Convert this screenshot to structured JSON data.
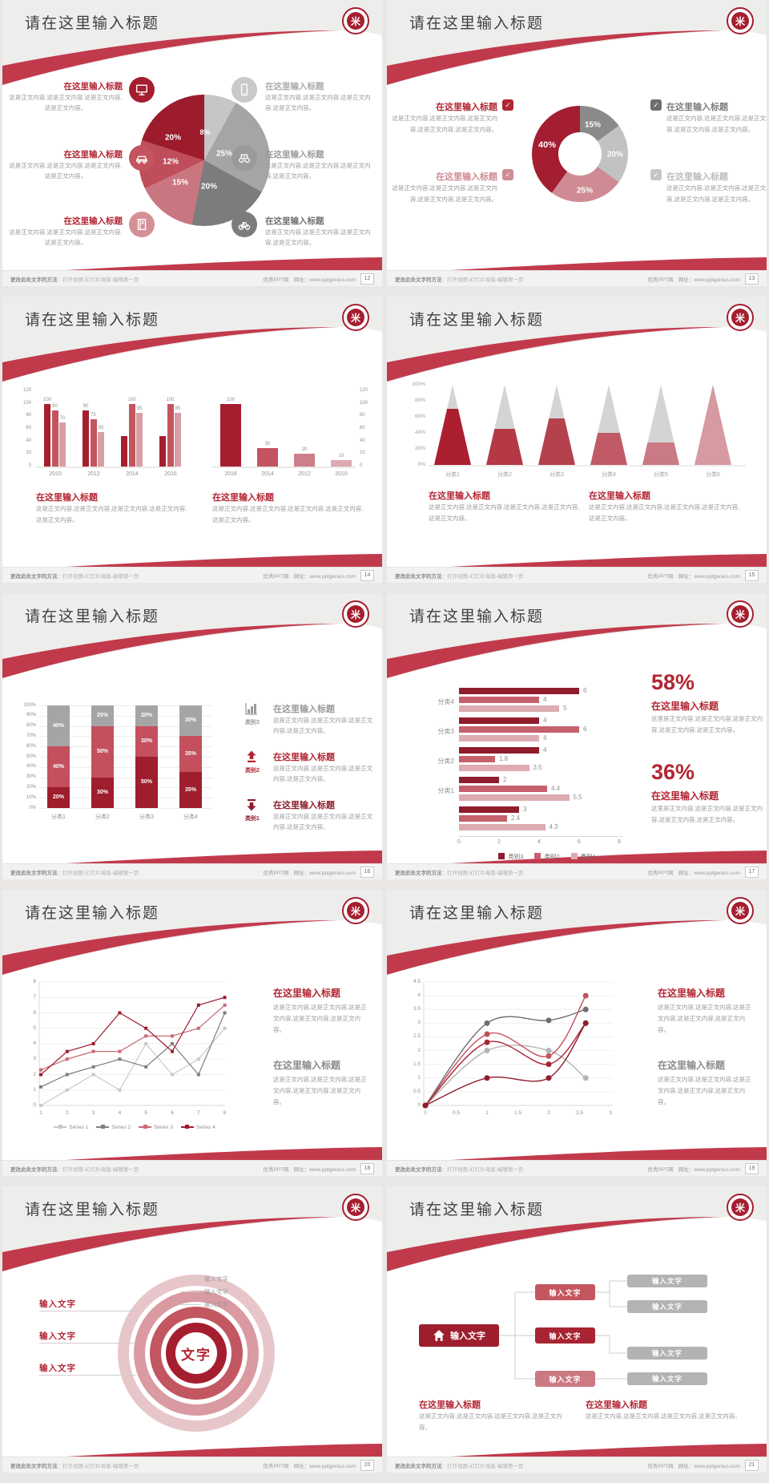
{
  "page": {
    "background": "#e9e7e5"
  },
  "colors": {
    "swoosh": "#c13a4c",
    "band": "#ededec",
    "crimson": "#a51e30",
    "dark_crimson": "#8f1d2c",
    "title_red": "#b22532",
    "med_red": "#c4545f",
    "pink": "#cb7a84",
    "light_pink": "#d99aa0",
    "pale_rose": "#e7c6ca",
    "gray_dark": "#7c7c7c",
    "gray": "#9a9a9a",
    "gray_light": "#c6c6c6",
    "title_text": "#404040",
    "body_text": "#9b9b9b"
  },
  "common": {
    "slide_title": "请在这里输入标题",
    "section_title": "在这里输入标题",
    "body4": "这是正文内容,这是正文内容,这是正文内容,这是正文内容。",
    "body5": "这是正文内容,这是正文内容,这是正文内容,这是正文内容,这是正文内容。",
    "body_alt": "这里是正文内容,这是正文内容,这是正文内容,这是正文内容,这是正文内容。",
    "input_text": "输入文字",
    "footer_left_strong": "更改此处文字的方法",
    "footer_left_rest": "：打开视图-幻灯片母版-编辑第一页",
    "footer_site": "优秀PPT网",
    "footer_url": "网址：www.pptgenius.com",
    "logo_glyph": "米"
  },
  "slides": [
    {
      "page": "12",
      "type": "pie",
      "chart_data": {
        "type": "pie",
        "values": [
          8,
          25,
          20,
          15,
          12,
          20
        ],
        "labels": [
          "8%",
          "25%",
          "20%",
          "15%",
          "12%",
          "20%"
        ],
        "colors": [
          "#c6c6c6",
          "#a5a5a5",
          "#7c7c7c",
          "#ca7680",
          "#bf4d5b",
          "#9c1b2c"
        ]
      },
      "items": [
        {
          "side": "left",
          "icon": "monitor-icon",
          "icon_color": "#a51e30",
          "title_color": "#b22532"
        },
        {
          "side": "left",
          "icon": "car-icon",
          "icon_color": "#c4545f",
          "title_color": "#b22532"
        },
        {
          "side": "left",
          "icon": "book-icon",
          "icon_color": "#d58f97",
          "title_color": "#b22532"
        },
        {
          "side": "right",
          "icon": "phone-icon",
          "icon_color": "#c9c9c9",
          "title_color": "#ababab"
        },
        {
          "side": "right",
          "icon": "binoculars-icon",
          "icon_color": "#9a9a9a",
          "title_color": "#9a9a9a"
        },
        {
          "side": "right",
          "icon": "bicycle-icon",
          "icon_color": "#7c7c7c",
          "title_color": "#6f6f6f"
        }
      ]
    },
    {
      "page": "13",
      "type": "donut",
      "chart_data": {
        "type": "pie",
        "values": [
          15,
          20,
          25,
          40
        ],
        "labels": [
          "15%",
          "20%",
          "25%",
          "40%"
        ],
        "colors": [
          "#8a8a8a",
          "#c2c2c2",
          "#cf8b93",
          "#a31e30"
        ]
      },
      "items": [
        {
          "pos": "lt",
          "title_color": "#b22532",
          "check_color": "#b22532"
        },
        {
          "pos": "lb",
          "title_color": "#cf8b93",
          "check_color": "#cf8b93"
        },
        {
          "pos": "rt",
          "title_color": "#7d7d7d",
          "check_color": "#6e6e6e"
        },
        {
          "pos": "rb",
          "title_color": "#bcbcbc",
          "check_color": "#c6c6c6"
        }
      ]
    },
    {
      "page": "14",
      "type": "bars2",
      "chart_data": [
        {
          "type": "bar",
          "categories": [
            "2010",
            "2012",
            "2014",
            "2016"
          ],
          "series_values": [
            [
              100,
              90,
              70
            ],
            [
              90,
              75,
              55
            ],
            [
              48,
              100,
              85
            ],
            [
              48,
              100,
              85
            ]
          ],
          "value_labels": [
            [
              "100",
              "90",
              "70"
            ],
            [
              "90",
              "75",
              "55"
            ],
            [
              "",
              "100",
              "85"
            ],
            [
              "",
              "100",
              "85"
            ]
          ],
          "colors": [
            "#a51e30",
            "#c4545f",
            "#d79fa5"
          ],
          "yticks": [
            "0",
            "20",
            "40",
            "60",
            "80",
            "100",
            "120"
          ],
          "ymax": 120
        },
        {
          "type": "bar",
          "categories": [
            "2016",
            "2014",
            "2012",
            "2010"
          ],
          "values": [
            100,
            30,
            20,
            10
          ],
          "value_labels": [
            "100",
            "30",
            "20",
            "10"
          ],
          "colors": [
            "#a51e30",
            "#c4545f",
            "#cb8089",
            "#dcaab0"
          ],
          "yticks": [
            "0",
            "20",
            "40",
            "60",
            "80",
            "100",
            "120"
          ],
          "ymax": 120,
          "y_axis_side": "right"
        }
      ]
    },
    {
      "page": "15",
      "type": "cones",
      "chart_data": {
        "type": "bar",
        "categories": [
          "分类1",
          "分类2",
          "分类3",
          "分类4",
          "分类5",
          "分类6"
        ],
        "values_pct": [
          70,
          45,
          58,
          40,
          28,
          100
        ],
        "colors": [
          "#ab1f30",
          "#b43845",
          "#b4414d",
          "#c05a66",
          "#c97a85",
          "#d69aa2"
        ],
        "cone_gray": "#d4d4d4",
        "yticks": [
          "0%",
          "20%",
          "40%",
          "60%",
          "80%",
          "100%"
        ]
      }
    },
    {
      "page": "16",
      "type": "stacked",
      "chart_data": {
        "type": "bar",
        "categories": [
          "分类1",
          "分类2",
          "分类3",
          "分类4"
        ],
        "series": [
          {
            "name": "类别1",
            "color": "#9e1e2d",
            "values": [
              20,
              30,
              50,
              35
            ]
          },
          {
            "name": "类别2",
            "color": "#c4505e",
            "values": [
              40,
              50,
              30,
              35
            ]
          },
          {
            "name": "类别3",
            "color": "#a5a5a5",
            "values": [
              40,
              20,
              20,
              30
            ]
          }
        ],
        "seg_labels": [
          [
            "20%",
            "40%",
            "40%"
          ],
          [
            "30%",
            "50%",
            "20%"
          ],
          [
            "50%",
            "30%",
            "20%"
          ],
          [
            "35%",
            "35%",
            "30%"
          ]
        ],
        "yticks": [
          "0%",
          "10%",
          "20%",
          "30%",
          "40%",
          "50%",
          "60%",
          "70%",
          "80%",
          "90%",
          "100%"
        ]
      },
      "panel": [
        {
          "cat": "类别3",
          "icon": "bar-chart-icon",
          "color": "#9a9a9a"
        },
        {
          "cat": "类别2",
          "icon": "arrow-up-icon",
          "color": "#b22532"
        },
        {
          "cat": "类别1",
          "icon": "arrow-down-icon",
          "color": "#8f1d2c"
        }
      ]
    },
    {
      "page": "17",
      "type": "hbars",
      "chart_data": {
        "type": "bar",
        "groups": [
          {
            "label": "分类4",
            "values": [
              6,
              4,
              5
            ],
            "value_labels": [
              "6",
              "4",
              "5"
            ]
          },
          {
            "label": "分类3",
            "values": [
              4,
              6,
              4
            ],
            "value_labels": [
              "4",
              "6",
              "4"
            ]
          },
          {
            "label": "分类2",
            "values": [
              4,
              1.8,
              3.5
            ],
            "value_labels": [
              "4",
              "1.8",
              "3.5"
            ]
          },
          {
            "label": "分类1",
            "values": [
              2,
              4.4,
              5.5
            ],
            "value_labels": [
              "2",
              "4.4",
              "5.5"
            ]
          },
          {
            "label": "",
            "values": [
              3,
              2.4,
              4.3
            ],
            "value_labels": [
              "3",
              "2.4",
              "4.3"
            ]
          }
        ],
        "colors": [
          "#8f1d2c",
          "#c4616c",
          "#ddabb1"
        ],
        "xticks": [
          "0",
          "2",
          "4",
          "6",
          "8"
        ],
        "xmax": 8,
        "legend": [
          "类别3",
          "类别2",
          "类别1"
        ],
        "legend_colors": [
          "#8f1d2c",
          "#c4616c",
          "#ddabb1"
        ]
      },
      "stats": [
        {
          "pct": "58%"
        },
        {
          "pct": "36%"
        }
      ]
    },
    {
      "page": "18",
      "type": "lines",
      "chart_data": {
        "type": "line",
        "x": [
          1,
          2,
          3,
          4,
          5,
          6,
          7,
          8
        ],
        "yticks": [
          "0",
          "1",
          "2",
          "3",
          "4",
          "5",
          "6",
          "7",
          "8"
        ],
        "ymax": 8,
        "series": [
          {
            "name": "Series 1",
            "color": "#c9c9c9",
            "values": [
              0,
              1,
              2,
              1,
              4,
              2,
              3,
              5
            ]
          },
          {
            "name": "Series 2",
            "color": "#7f7f7f",
            "values": [
              1.2,
              2,
              2.5,
              3,
              2.5,
              4,
              2,
              6
            ]
          },
          {
            "name": "Series 3",
            "color": "#c86974",
            "values": [
              2.3,
              3,
              3.5,
              3.5,
              4.5,
              4.5,
              5,
              6.5
            ]
          },
          {
            "name": "Series 4",
            "color": "#9e1c2d",
            "values": [
              2,
              3.5,
              4,
              6,
              5,
              3.5,
              6.5,
              7
            ]
          }
        ]
      }
    },
    {
      "page": "19",
      "type": "curves",
      "chart_data": {
        "type": "line",
        "x": [
          0,
          1,
          2,
          2.6
        ],
        "xticks": [
          "0",
          "0.5",
          "1",
          "1.5",
          "2",
          "2.5",
          "3"
        ],
        "xmax": 3,
        "yticks": [
          "0",
          "0.5",
          "1",
          "1.5",
          "2",
          "2.5",
          "3",
          "3.5",
          "4",
          "4.5"
        ],
        "ymax": 4.5,
        "series": [
          {
            "color": "#6e6e6e",
            "values": [
              0,
              3,
              3.1,
              3.5
            ]
          },
          {
            "color": "#b3b3b3",
            "values": [
              0,
              2,
              2,
              1
            ]
          },
          {
            "color": "#c0505c",
            "values": [
              0,
              2.6,
              1.8,
              4
            ]
          },
          {
            "color": "#a82433",
            "values": [
              0,
              2.3,
              1.5,
              3
            ]
          },
          {
            "color": "#8f1d2c",
            "values": [
              0,
              1,
              1,
              3
            ]
          }
        ]
      }
    },
    {
      "page": "20",
      "type": "rings",
      "center_text": "文字",
      "left_labels": [
        "输入文字",
        "输入文字",
        "输入文字"
      ],
      "top_labels": [
        "输入文字",
        "输入文字",
        "输入文字"
      ],
      "ring_colors": [
        "#e7c6ca",
        "#d99aa2",
        "#c25762",
        "#a51e30"
      ]
    },
    {
      "page": "21",
      "type": "flow",
      "root_label": "输入文字",
      "mid_boxes": [
        {
          "label": "输入文字",
          "color": "#c4565f"
        },
        {
          "label": "输入文字",
          "color": "#a82433"
        },
        {
          "label": "输入文字",
          "color": "#cb7a84"
        }
      ],
      "right_boxes": [
        "输入文字",
        "输入文字",
        "输入文字",
        "输入文字"
      ],
      "right_box_color": "#b3b3b3"
    }
  ]
}
